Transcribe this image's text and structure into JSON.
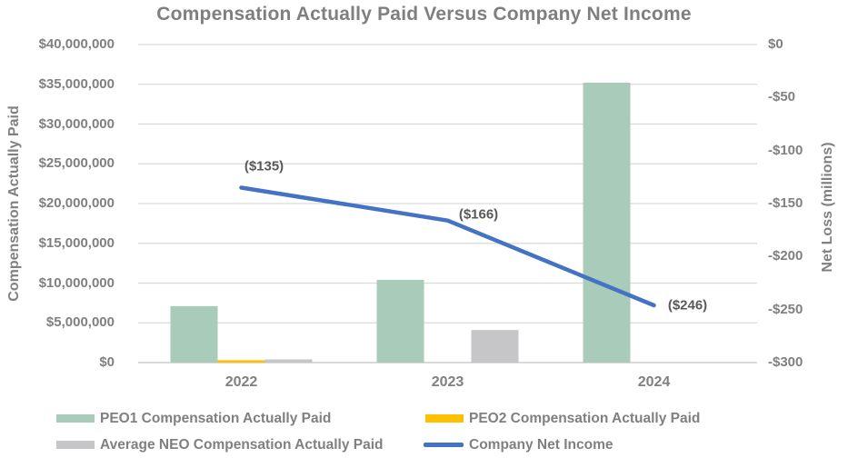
{
  "title": "Compensation Actually Paid Versus Company Net Income",
  "chart_data": {
    "type": "combo-bar-line",
    "categories": [
      "2022",
      "2023",
      "2024"
    ],
    "bar_series": [
      {
        "name": "PEO1 Compensation Actually Paid",
        "color": "#a9cbba",
        "values": [
          7100000,
          10400000,
          35200000
        ]
      },
      {
        "name": "PEO2 Compensation Actually Paid",
        "color": "#ffc000",
        "values": [
          300000,
          0,
          0
        ]
      },
      {
        "name": "Average NEO Compensation Actually Paid",
        "color": "#c6c6c8",
        "values": [
          400000,
          4100000,
          0
        ]
      }
    ],
    "line_series": {
      "name": "Company Net Income",
      "color": "#4472c4",
      "values": [
        -135,
        -166,
        -246
      ],
      "point_labels": [
        "($135)",
        "($166)",
        "($246)"
      ]
    },
    "left_axis": {
      "title": "Compensation Actually Paid",
      "min": 0,
      "max": 40000000,
      "tick_labels": [
        "$40,000,000",
        "$35,000,000",
        "$30,000,000",
        "$25,000,000",
        "$20,000,000",
        "$15,000,000",
        "$10,000,000",
        "$5,000,000",
        "$0"
      ]
    },
    "right_axis": {
      "title": "Net Loss (millions)",
      "min": -300,
      "max": 0,
      "tick_labels": [
        "$0",
        "-$50",
        "-$100",
        "-$150",
        "-$200",
        "-$250",
        "-$300"
      ]
    },
    "grid": "horizontal",
    "legend_position": "bottom",
    "colors": {
      "title_text": "#7f7f7f",
      "axis_text": "#808080",
      "annotation_text": "#595959",
      "gridline": "#d9d9d9"
    }
  }
}
